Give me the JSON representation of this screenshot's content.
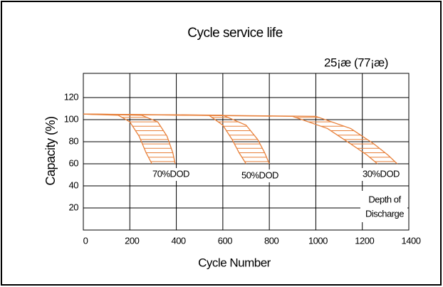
{
  "chart_data": {
    "type": "line",
    "title": "Cycle service life",
    "subtitle": "25¡æ (77¡æ)",
    "x_label": "Cycle Number",
    "y_label": "Capacity  (%)",
    "xlim": [
      0,
      1400
    ],
    "xticks": [
      0,
      200,
      400,
      600,
      800,
      1000,
      1200,
      1400
    ],
    "ylim": [
      0,
      140
    ],
    "yticks": [
      20,
      40,
      60,
      80,
      100,
      120
    ],
    "grid": true,
    "bands": [
      {
        "label": "70%DOD",
        "color": "#e8803a",
        "left": {
          "x": [
            0,
            150,
            200,
            240,
            270,
            295
          ],
          "y": [
            105,
            104,
            98,
            85,
            70,
            60
          ]
        },
        "right": {
          "x": [
            0,
            250,
            320,
            360,
            385,
            395
          ],
          "y": [
            105,
            104,
            98,
            85,
            70,
            60
          ]
        }
      },
      {
        "label": "50%DOD",
        "color": "#e8803a",
        "left": {
          "x": [
            0,
            540,
            600,
            640,
            670,
            700
          ],
          "y": [
            105,
            104,
            95,
            82,
            70,
            60
          ]
        },
        "right": {
          "x": [
            0,
            600,
            700,
            750,
            780,
            800
          ],
          "y": [
            105,
            104,
            95,
            82,
            70,
            60
          ]
        }
      },
      {
        "label": "30%DOD",
        "color": "#e8803a",
        "left": {
          "x": [
            0,
            900,
            1050,
            1150,
            1220,
            1265
          ],
          "y": [
            105,
            103,
            92,
            78,
            68,
            60
          ]
        },
        "right": {
          "x": [
            0,
            1000,
            1150,
            1250,
            1310,
            1350
          ],
          "y": [
            105,
            103,
            92,
            78,
            68,
            60
          ]
        }
      }
    ],
    "legend_title": [
      "Depth of",
      "Discharge"
    ]
  }
}
